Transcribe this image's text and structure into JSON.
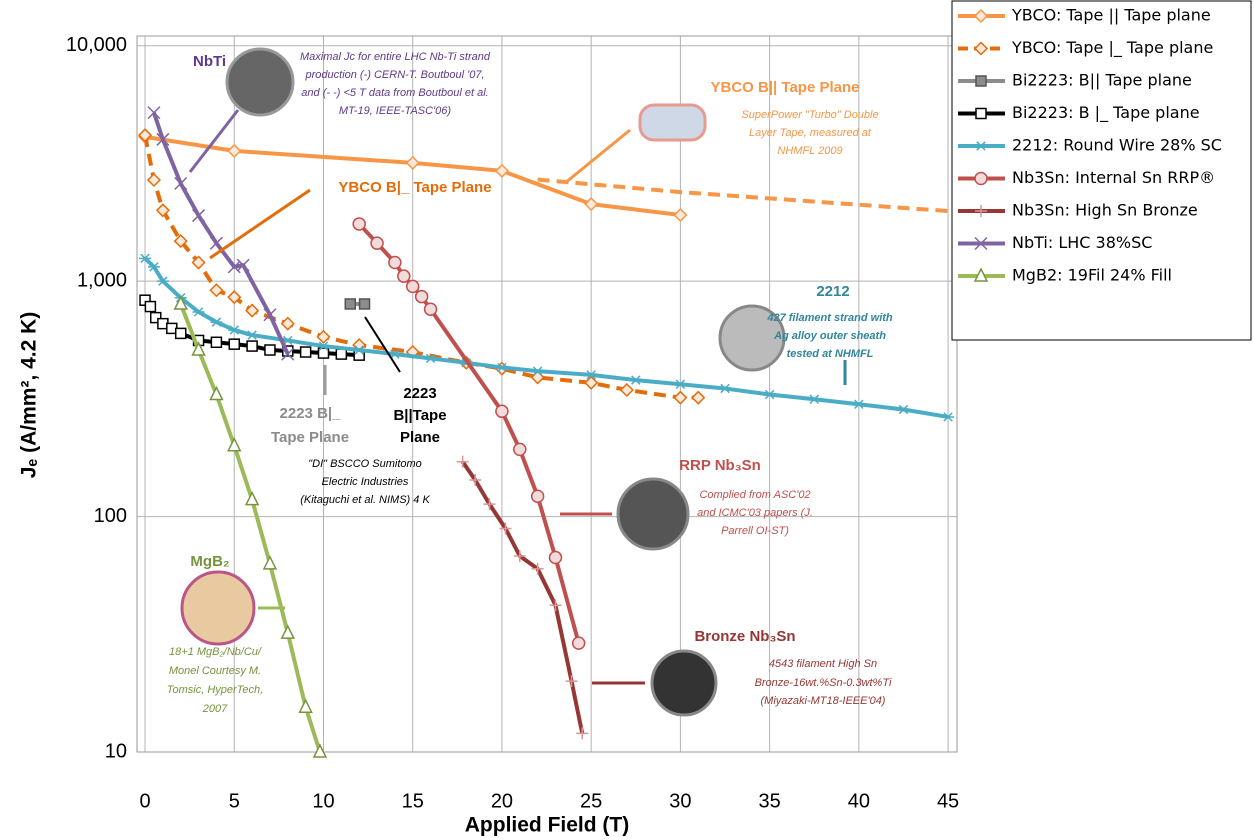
{
  "chart_data": {
    "type": "line",
    "x_label": "Applied Field (T)",
    "y_label": "Jₑ (A/mm², 4.2 K)",
    "xlim": [
      -0.45,
      45.5
    ],
    "xticks": [
      0,
      5,
      10,
      15,
      20,
      25,
      30,
      35,
      40,
      45
    ],
    "ylim": [
      10,
      11000
    ],
    "log_y": true,
    "yticks": [
      {
        "value": 10000,
        "label": "10,000"
      },
      {
        "value": 1000,
        "label": "1,000"
      },
      100,
      10
    ],
    "grid": true,
    "legend": "upper right",
    "series": [
      {
        "name": "YBCO: Tape || Tape plane",
        "color": "#f79646",
        "marker": "diamond",
        "dashed": false,
        "x": [
          0,
          5,
          15,
          20,
          25,
          30
        ],
        "values": [
          4100,
          3575,
          3180,
          2940,
          2125,
          1910
        ]
      },
      {
        "color": "#f79646",
        "dashed": true,
        "x": [
          22,
          30,
          45
        ],
        "values": [
          2700,
          2390,
          1985
        ]
      },
      {
        "name": "YBCO: Tape |_ Tape plane",
        "color": "#e46c0a",
        "marker": "diamond",
        "dashed": true,
        "x": [
          0,
          0.5,
          1,
          2,
          3,
          4,
          5,
          6,
          8,
          10,
          12,
          15,
          18,
          20,
          22,
          25,
          27,
          30,
          31
        ],
        "values": [
          4170,
          2690,
          2000,
          1480,
          1200,
          915,
          855,
          750,
          660,
          580,
          535,
          500,
          450,
          425,
          390,
          370,
          345,
          320,
          320
        ]
      },
      {
        "name": "Bi2223: B|| Tape plane",
        "color": "#8c8c8c",
        "marker": "square-filled",
        "dashed": false,
        "x": [
          11.5,
          12.3
        ],
        "values": [
          800,
          800
        ]
      },
      {
        "name": "Bi2223: B |_ Tape plane",
        "color": "#000000",
        "marker": "square",
        "dashed": false,
        "x": [
          0,
          0.3,
          0.6,
          1,
          1.5,
          2,
          3,
          4,
          5,
          6,
          7,
          8,
          9,
          10,
          11,
          12
        ],
        "values": [
          830,
          780,
          700,
          660,
          630,
          600,
          560,
          550,
          540,
          530,
          510,
          505,
          500,
          495,
          490,
          485
        ]
      },
      {
        "name": "2212: Round Wire 28% SC",
        "color": "#4bacc6",
        "marker": "asterisk",
        "dashed": false,
        "x": [
          0,
          0.5,
          1,
          2,
          3,
          4,
          5,
          6,
          8,
          10,
          12,
          14,
          16,
          18,
          20,
          22,
          25,
          27.5,
          30,
          32.5,
          35,
          37.5,
          40,
          42.5,
          45
        ],
        "values": [
          1250,
          1150,
          1000,
          850,
          740,
          670,
          620,
          590,
          560,
          530,
          510,
          490,
          470,
          450,
          430,
          415,
          400,
          380,
          365,
          350,
          330,
          315,
          300,
          285,
          265
        ]
      },
      {
        "name": "Nb3Sn: Internal Sn RRP®",
        "color": "#c0504d",
        "marker": "circle",
        "dashed": false,
        "x": [
          12,
          13,
          14,
          14.5,
          15,
          15.5,
          16,
          20,
          21,
          22,
          23,
          24.3
        ],
        "values": [
          1750,
          1450,
          1200,
          1050,
          950,
          860,
          760,
          280,
          193,
          122,
          67,
          29
        ]
      },
      {
        "name": "Nb3Sn: High Sn Bronze",
        "color": "#953735",
        "marker": "plus",
        "dashed": false,
        "x": [
          17.8,
          18.5,
          19.3,
          20.2,
          21,
          22,
          23,
          23.9,
          24.5
        ],
        "values": [
          171,
          143,
          113,
          89,
          68,
          60,
          42,
          20,
          12
        ]
      },
      {
        "name": "NbTi: LHC 38%SC",
        "color": "#8064a2",
        "marker": "x",
        "dashed": false,
        "x": [
          0.5,
          1,
          2,
          3,
          4,
          5,
          5.5,
          7,
          8
        ],
        "values": [
          5200,
          4000,
          2600,
          1900,
          1450,
          1150,
          1170,
          720,
          490
        ]
      },
      {
        "name": "MgB2: 19Fil 24% Fill",
        "color": "#9bbb59",
        "marker": "triangle",
        "dashed": false,
        "x": [
          2,
          3,
          4,
          5,
          6,
          7,
          8,
          9,
          9.8
        ],
        "values": [
          800,
          510,
          330,
          200,
          118,
          63,
          32,
          15.5,
          10
        ]
      }
    ],
    "annotations": [
      {
        "lines": [
          "NbTi"
        ]
      },
      {
        "lines": [
          "Maximal Jc for entire LHC Nb-Ti strand",
          "production (-) CERN-T. Boutboul '07,",
          "and (- -) <5 T data from Boutboul et al.",
          "MT-19, IEEE-TASC'06)"
        ]
      },
      {
        "lines": [
          "YBCO B|| Tape Plane"
        ]
      },
      {
        "lines": [
          "SuperPower \"Turbo\" Double",
          "Layer Tape, measured at",
          "NHMFL 2009"
        ]
      },
      {
        "lines": [
          "YBCO B|_ Tape Plane"
        ]
      },
      {
        "lines": [
          "2212"
        ]
      },
      {
        "lines": [
          "427 filament strand with",
          "Ag alloy outer sheath",
          "tested at NHMFL"
        ]
      },
      {
        "lines": [
          "2223 B|_",
          "Tape Plane"
        ]
      },
      {
        "lines": [
          "2223",
          "B||Tape",
          "Plane"
        ]
      },
      {
        "lines": [
          "\"DI\" BSCCO Sumitomo",
          "Electric Industries",
          "(Kitaguchi et al. NIMS) 4 K"
        ]
      },
      {
        "lines": [
          "RRP Nb₃Sn"
        ]
      },
      {
        "lines": [
          "Complied from ASC'02",
          "and ICMC'03 papers (J.",
          "Parrell OI-ST)"
        ]
      },
      {
        "lines": [
          "Bronze Nb₃Sn"
        ]
      },
      {
        "lines": [
          "4543 filament High Sn",
          "Bronze-16wt.%Sn-0.3wt%Ti",
          "(Miyazaki-MT18-IEEE'04)"
        ]
      },
      {
        "lines": [
          "MgB₂"
        ]
      },
      {
        "lines": [
          "18+1 MgB₂/Nb/Cu/",
          "Monel Courtesy M.",
          "Tomsic, HyperTech,",
          "2007"
        ]
      }
    ]
  }
}
